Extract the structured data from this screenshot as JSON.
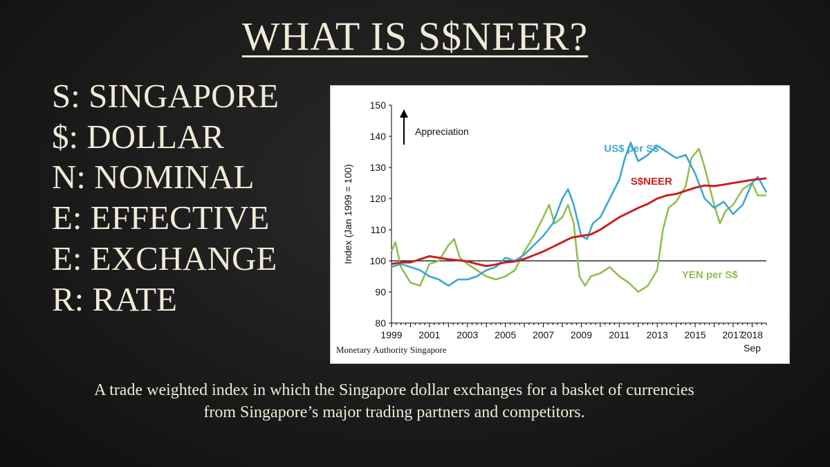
{
  "title": "WHAT IS S$NEER?",
  "acronym": [
    "S: SINGAPORE",
    "$: DOLLAR",
    "N: NOMINAL",
    "E: EFFECTIVE",
    "E: EXCHANGE",
    "R: RATE"
  ],
  "description": "A trade weighted index in which the Singapore dollar exchanges for a basket of currencies from Singapore’s major trading partners and competitors.",
  "source": "Monetary Authority Singapore",
  "colors": {
    "sneer": "#c8201e",
    "usd": "#3ea6d1",
    "yen": "#8fbf4f",
    "baseline": "#000000"
  },
  "chart_data": {
    "type": "line",
    "ylabel": "Index (Jan 1999 = 100)",
    "ylim": [
      80,
      150
    ],
    "yticks": [
      80,
      90,
      100,
      110,
      120,
      130,
      140,
      150
    ],
    "xlim": [
      1999,
      2018.75
    ],
    "xticks": [
      "1999",
      "2001",
      "2003",
      "2005",
      "2007",
      "2009",
      "2011",
      "2013",
      "2015",
      "2017",
      "2018"
    ],
    "x_suffix": "Sep",
    "baseline": 100,
    "annotation": "Appreciation",
    "grid": false,
    "series": [
      {
        "name": "S$NEER",
        "color_key": "sneer",
        "points": [
          [
            1999.0,
            99.0
          ],
          [
            1999.5,
            99.5
          ],
          [
            2000.0,
            99.5
          ],
          [
            2000.5,
            100.5
          ],
          [
            2001.0,
            101.5
          ],
          [
            2001.5,
            101.0
          ],
          [
            2002.0,
            100.5
          ],
          [
            2002.5,
            100.2
          ],
          [
            2003.0,
            99.8
          ],
          [
            2003.5,
            99.0
          ],
          [
            2004.0,
            98.3
          ],
          [
            2004.5,
            98.8
          ],
          [
            2005.0,
            99.5
          ],
          [
            2005.5,
            99.8
          ],
          [
            2006.0,
            100.6
          ],
          [
            2006.5,
            101.8
          ],
          [
            2007.0,
            103.0
          ],
          [
            2007.5,
            104.5
          ],
          [
            2008.0,
            106.0
          ],
          [
            2008.5,
            107.5
          ],
          [
            2009.0,
            108.0
          ],
          [
            2009.5,
            108.5
          ],
          [
            2010.0,
            110.0
          ],
          [
            2010.5,
            112.0
          ],
          [
            2011.0,
            114.0
          ],
          [
            2011.5,
            115.5
          ],
          [
            2012.0,
            117.0
          ],
          [
            2012.5,
            118.3
          ],
          [
            2013.0,
            120.0
          ],
          [
            2013.5,
            121.0
          ],
          [
            2014.0,
            121.5
          ],
          [
            2014.5,
            122.5
          ],
          [
            2015.0,
            123.5
          ],
          [
            2015.5,
            124.2
          ],
          [
            2016.0,
            124.0
          ],
          [
            2016.5,
            124.5
          ],
          [
            2017.0,
            125.0
          ],
          [
            2017.5,
            125.5
          ],
          [
            2018.0,
            126.0
          ],
          [
            2018.75,
            126.5
          ]
        ]
      },
      {
        "name": "US$ per S$",
        "color_key": "usd",
        "points": [
          [
            1999.0,
            98.0
          ],
          [
            1999.5,
            99.0
          ],
          [
            2000.0,
            98.0
          ],
          [
            2000.5,
            97.0
          ],
          [
            2001.0,
            95.0
          ],
          [
            2001.5,
            94.0
          ],
          [
            2002.0,
            92.0
          ],
          [
            2002.5,
            94.0
          ],
          [
            2003.0,
            94.0
          ],
          [
            2003.5,
            95.0
          ],
          [
            2004.0,
            97.0
          ],
          [
            2004.5,
            98.0
          ],
          [
            2005.0,
            101.0
          ],
          [
            2005.5,
            100.0
          ],
          [
            2006.0,
            102.0
          ],
          [
            2006.5,
            105.0
          ],
          [
            2007.0,
            108.0
          ],
          [
            2007.5,
            112.0
          ],
          [
            2008.0,
            120.0
          ],
          [
            2008.3,
            123.0
          ],
          [
            2008.6,
            118.0
          ],
          [
            2009.0,
            108.0
          ],
          [
            2009.3,
            107.0
          ],
          [
            2009.6,
            112.0
          ],
          [
            2010.0,
            114.0
          ],
          [
            2010.5,
            120.0
          ],
          [
            2011.0,
            126.0
          ],
          [
            2011.3,
            133.0
          ],
          [
            2011.6,
            138.0
          ],
          [
            2012.0,
            132.0
          ],
          [
            2012.5,
            134.0
          ],
          [
            2013.0,
            137.0
          ],
          [
            2013.5,
            135.0
          ],
          [
            2014.0,
            133.0
          ],
          [
            2014.5,
            134.0
          ],
          [
            2015.0,
            128.0
          ],
          [
            2015.5,
            120.0
          ],
          [
            2016.0,
            117.0
          ],
          [
            2016.5,
            119.0
          ],
          [
            2017.0,
            115.0
          ],
          [
            2017.5,
            118.0
          ],
          [
            2018.0,
            125.0
          ],
          [
            2018.3,
            127.0
          ],
          [
            2018.75,
            122.0
          ]
        ]
      },
      {
        "name": "YEN per S$",
        "color_key": "yen",
        "points": [
          [
            1999.0,
            103.0
          ],
          [
            1999.2,
            106.0
          ],
          [
            1999.5,
            98.0
          ],
          [
            2000.0,
            93.0
          ],
          [
            2000.5,
            92.0
          ],
          [
            2001.0,
            99.0
          ],
          [
            2001.5,
            100.0
          ],
          [
            2002.0,
            105.0
          ],
          [
            2002.3,
            107.0
          ],
          [
            2002.6,
            101.0
          ],
          [
            2003.0,
            99.0
          ],
          [
            2003.5,
            97.0
          ],
          [
            2004.0,
            95.0
          ],
          [
            2004.5,
            94.0
          ],
          [
            2005.0,
            95.0
          ],
          [
            2005.5,
            97.0
          ],
          [
            2006.0,
            103.0
          ],
          [
            2006.5,
            108.0
          ],
          [
            2007.0,
            114.0
          ],
          [
            2007.3,
            118.0
          ],
          [
            2007.6,
            112.0
          ],
          [
            2008.0,
            114.0
          ],
          [
            2008.3,
            118.0
          ],
          [
            2008.6,
            112.0
          ],
          [
            2008.9,
            95.0
          ],
          [
            2009.2,
            92.0
          ],
          [
            2009.5,
            95.0
          ],
          [
            2010.0,
            96.0
          ],
          [
            2010.5,
            98.0
          ],
          [
            2011.0,
            95.0
          ],
          [
            2011.5,
            93.0
          ],
          [
            2012.0,
            90.0
          ],
          [
            2012.5,
            92.0
          ],
          [
            2013.0,
            97.0
          ],
          [
            2013.3,
            110.0
          ],
          [
            2013.6,
            117.0
          ],
          [
            2014.0,
            119.0
          ],
          [
            2014.5,
            124.0
          ],
          [
            2014.8,
            133.0
          ],
          [
            2015.2,
            136.0
          ],
          [
            2015.5,
            130.0
          ],
          [
            2016.0,
            118.0
          ],
          [
            2016.3,
            112.0
          ],
          [
            2016.6,
            116.0
          ],
          [
            2017.0,
            118.0
          ],
          [
            2017.5,
            123.0
          ],
          [
            2018.0,
            125.0
          ],
          [
            2018.3,
            121.0
          ],
          [
            2018.75,
            121.0
          ]
        ]
      }
    ],
    "series_label_positions": {
      "US$ per S$": [
        2010.2,
        135
      ],
      "S$NEER": [
        2011.6,
        124.5
      ],
      "YEN per S$": [
        2014.3,
        94.5
      ]
    }
  }
}
